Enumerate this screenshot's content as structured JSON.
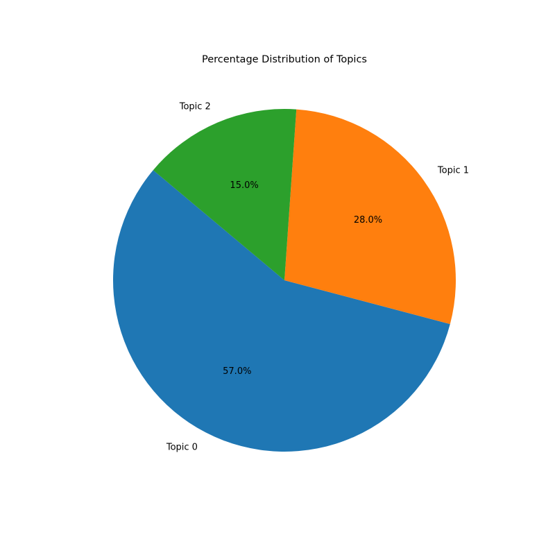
{
  "chart_data": {
    "type": "pie",
    "title": "Percentage Distribution of Topics",
    "categories": [
      "Topic 0",
      "Topic 1",
      "Topic 2"
    ],
    "values": [
      57.0,
      28.0,
      15.0
    ],
    "value_labels": [
      "57.0%",
      "28.0%",
      "15.0%"
    ],
    "colors": [
      "#1f77b4",
      "#ff7f0e",
      "#2ca02c"
    ],
    "start_angle_deg": 140,
    "direction": "counterclockwise"
  }
}
